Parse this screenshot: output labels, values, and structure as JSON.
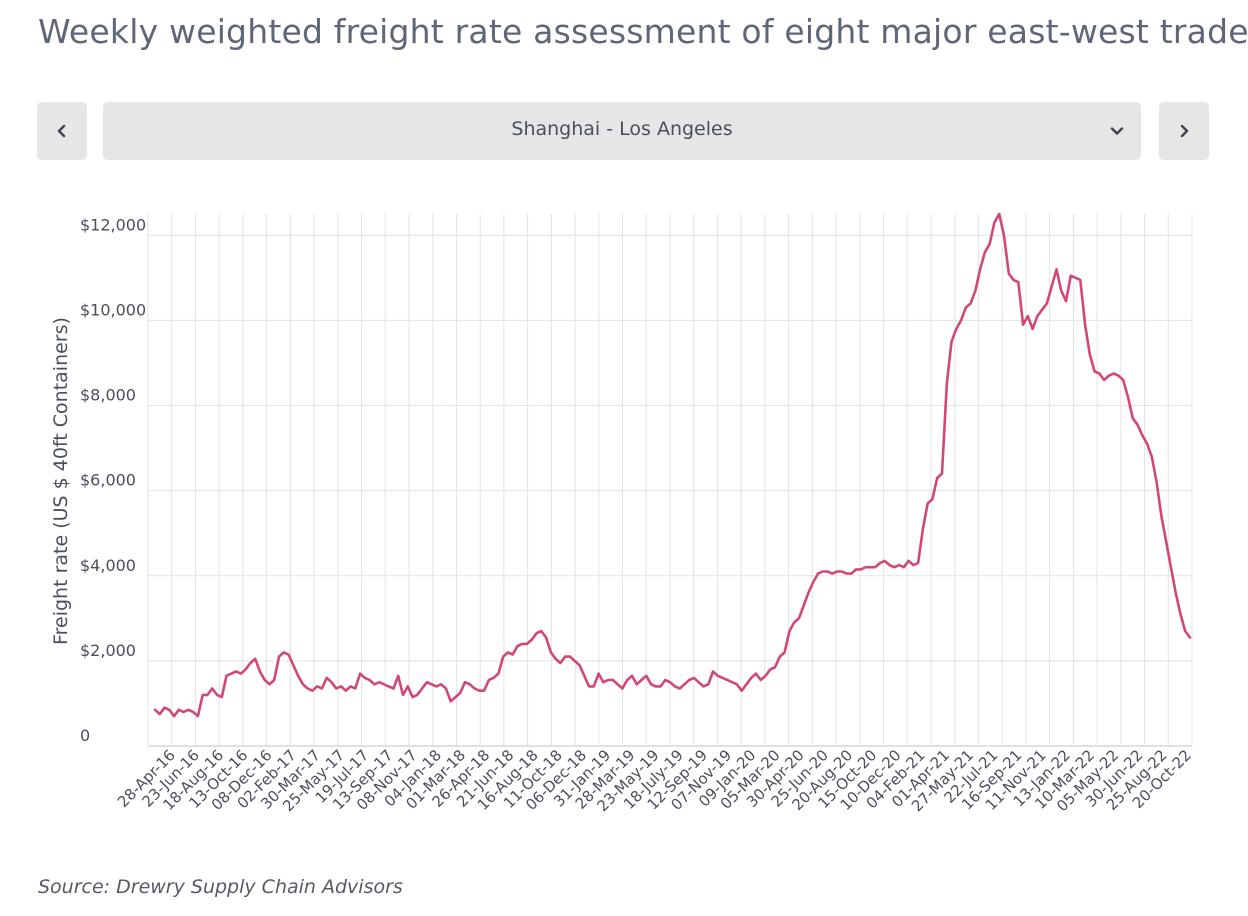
{
  "header": {
    "title": "Weekly weighted freight rate assessment of eight major east-west trades"
  },
  "controls": {
    "prev_icon": "chevron-left-icon",
    "next_icon": "chevron-right-icon",
    "select_icon": "chevron-down-icon",
    "selected_trade": "Shanghai - Los Angeles"
  },
  "footer": {
    "source_label": "Source:",
    "source_text": "Drewry Supply Chain Advisors"
  },
  "colors": {
    "line": "#d1477a",
    "grid": "#e3e3e3",
    "button_bg": "#e6e6e6"
  },
  "chart_data": {
    "type": "line",
    "title": "",
    "xlabel": "",
    "ylabel": "Freight rate (US $ 40ft Containers)",
    "ylim": [
      0,
      12500
    ],
    "yticks": [
      0,
      2000,
      4000,
      6000,
      8000,
      10000,
      12000
    ],
    "ytick_labels": [
      "0",
      "$2,000",
      "$4,000",
      "$6,000",
      "$8,000",
      "$10,000",
      "$12,000"
    ],
    "grid": true,
    "legend": "none",
    "x_tick_labels": [
      "28-Apr-16",
      "23-Jun-16",
      "18-Aug-16",
      "13-Oct-16",
      "08-Dec-16",
      "02-Feb-17",
      "30-Mar-17",
      "25-May-17",
      "19-Jul-17",
      "13-Sep-17",
      "08-Nov-17",
      "04-Jan-18",
      "01-Mar-18",
      "26-Apr-18",
      "21-Jun-18",
      "16-Aug-18",
      "11-Oct-18",
      "06-Dec-18",
      "31-Jan-19",
      "28-Mar-19",
      "23-May-19",
      "18-July-19",
      "12-Sep-19",
      "07-Nov-19",
      "09-Jan-20",
      "05-Mar-20",
      "30-Apr-20",
      "25-Jun-20",
      "20-Aug-20",
      "15-Oct-20",
      "10-Dec-20",
      "04-Feb-21",
      "01-Apr-21",
      "27-May-21",
      "22-Jul-21",
      "16-Sep-21",
      "11-Nov-21",
      "13-Jan-22",
      "10-Mar-22",
      "05-May-22",
      "30-Jun-22",
      "25-Aug-22",
      "20-Oct-22"
    ],
    "series": [
      {
        "values": [
          850,
          750,
          900,
          850,
          700,
          850,
          800,
          850,
          800,
          700,
          1200,
          1200,
          1350,
          1200,
          1150,
          1650,
          1700,
          1750,
          1700,
          1800,
          1950,
          2050,
          1750,
          1550,
          1450,
          1550,
          2100,
          2200,
          2150,
          1900,
          1650,
          1450,
          1350,
          1300,
          1400,
          1350,
          1600,
          1500,
          1350,
          1400,
          1300,
          1400,
          1350,
          1700,
          1600,
          1550,
          1450,
          1500,
          1450,
          1400,
          1350,
          1650,
          1200,
          1400,
          1150,
          1200,
          1350,
          1500,
          1450,
          1400,
          1450,
          1350,
          1050,
          1150,
          1250,
          1500,
          1450,
          1350,
          1300,
          1300,
          1550,
          1600,
          1700,
          2100,
          2200,
          2150,
          2350,
          2400,
          2400,
          2500,
          2650,
          2700,
          2550,
          2200,
          2050,
          1950,
          2100,
          2100,
          2000,
          1900,
          1650,
          1400,
          1400,
          1700,
          1500,
          1550,
          1550,
          1450,
          1350,
          1550,
          1650,
          1450,
          1550,
          1650,
          1450,
          1400,
          1400,
          1550,
          1500,
          1400,
          1350,
          1450,
          1550,
          1600,
          1500,
          1400,
          1450,
          1750,
          1650,
          1600,
          1550,
          1500,
          1450,
          1300,
          1450,
          1600,
          1700,
          1550,
          1650,
          1800,
          1850,
          2100,
          2200,
          2700,
          2900,
          3000,
          3300,
          3600,
          3850,
          4050,
          4100,
          4100,
          4050,
          4100,
          4100,
          4050,
          4050,
          4150,
          4150,
          4200,
          4200,
          4200,
          4300,
          4350,
          4250,
          4200,
          4250,
          4200,
          4350,
          4250,
          4300,
          5100,
          5700,
          5800,
          6300,
          6400,
          8500,
          9500,
          9800,
          10000,
          10300,
          10400,
          10700,
          11200,
          11600,
          11800,
          12300,
          12500,
          12000,
          11100,
          10950,
          10900,
          9900,
          10100,
          9800,
          10100,
          10250,
          10400,
          10800,
          11200,
          10700,
          10450,
          11050,
          11000,
          10950,
          9900,
          9200,
          8800,
          8750,
          8600,
          8700,
          8750,
          8700,
          8600,
          8200,
          7700,
          7550,
          7300,
          7100,
          6800,
          6200,
          5400,
          4800,
          4200,
          3600,
          3100,
          2700,
          2550
        ]
      }
    ]
  }
}
